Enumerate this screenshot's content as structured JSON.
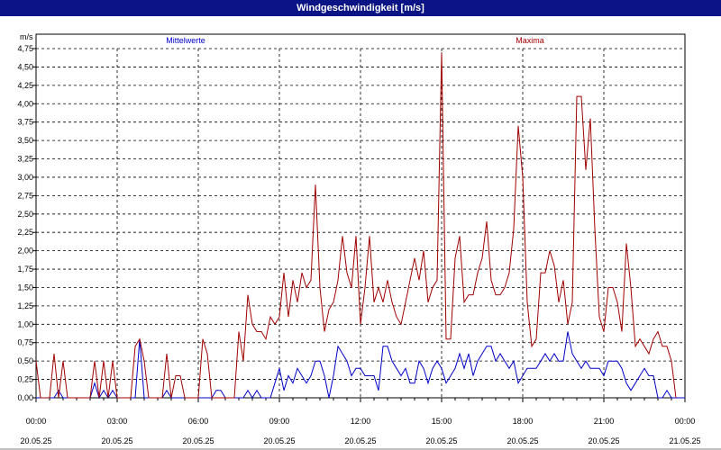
{
  "window": {
    "title": "Windgeschwindigkeit [m/s]"
  },
  "chart_data": {
    "type": "line",
    "title": "Windgeschwindigkeit [m/s]",
    "ylabel": "m/s",
    "ylim": [
      0,
      4.75
    ],
    "yticks": [
      "0,00",
      "0,25",
      "0,50",
      "0,75",
      "1,00",
      "1,25",
      "1,50",
      "1,75",
      "2,00",
      "2,25",
      "2,50",
      "2,75",
      "3,00",
      "3,25",
      "3,50",
      "3,75",
      "4,00",
      "4,25",
      "4,50",
      "4,75"
    ],
    "xticks": [
      {
        "time": "00:00",
        "date": "20.05.25"
      },
      {
        "time": "03:00",
        "date": "20.05.25"
      },
      {
        "time": "06:00",
        "date": "20.05.25"
      },
      {
        "time": "09:00",
        "date": "20.05.25"
      },
      {
        "time": "12:00",
        "date": "20.05.25"
      },
      {
        "time": "15:00",
        "date": "20.05.25"
      },
      {
        "time": "18:00",
        "date": "20.05.25"
      },
      {
        "time": "21:00",
        "date": "20.05.25"
      },
      {
        "time": "00:00",
        "date": "21.05.25"
      }
    ],
    "grid": true,
    "legend_position": "top",
    "series": [
      {
        "name": "Mittelwerte",
        "color": "#0000c8",
        "points": [
          [
            0,
            0
          ],
          [
            20,
            0
          ],
          [
            25,
            0.1
          ],
          [
            30,
            0
          ],
          [
            60,
            0
          ],
          [
            65,
            0.2
          ],
          [
            70,
            0
          ],
          [
            75,
            0.1
          ],
          [
            80,
            0
          ],
          [
            85,
            0.1
          ],
          [
            90,
            0
          ],
          [
            100,
            0
          ],
          [
            110,
            0
          ],
          [
            115,
            0.8
          ],
          [
            120,
            0
          ],
          [
            140,
            0
          ],
          [
            145,
            0.1
          ],
          [
            150,
            0
          ],
          [
            170,
            0
          ],
          [
            180,
            0
          ],
          [
            195,
            0
          ],
          [
            200,
            0.1
          ],
          [
            205,
            0.1
          ],
          [
            210,
            0
          ],
          [
            220,
            0
          ],
          [
            230,
            0
          ],
          [
            235,
            0.1
          ],
          [
            240,
            0
          ],
          [
            245,
            0.1
          ],
          [
            250,
            0
          ],
          [
            255,
            0
          ],
          [
            260,
            0
          ],
          [
            265,
            0.2
          ],
          [
            270,
            0.4
          ],
          [
            275,
            0.1
          ],
          [
            280,
            0.3
          ],
          [
            285,
            0.2
          ],
          [
            290,
            0.4
          ],
          [
            295,
            0.3
          ],
          [
            300,
            0.2
          ],
          [
            305,
            0.3
          ],
          [
            310,
            0.5
          ],
          [
            315,
            0.5
          ],
          [
            320,
            0.3
          ],
          [
            325,
            0
          ],
          [
            330,
            0.3
          ],
          [
            335,
            0.7
          ],
          [
            340,
            0.6
          ],
          [
            345,
            0.5
          ],
          [
            350,
            0.3
          ],
          [
            355,
            0.4
          ],
          [
            360,
            0.4
          ],
          [
            365,
            0.3
          ],
          [
            370,
            0.3
          ],
          [
            375,
            0.3
          ],
          [
            380,
            0.1
          ],
          [
            385,
            0.7
          ],
          [
            390,
            0.7
          ],
          [
            395,
            0.5
          ],
          [
            400,
            0.4
          ],
          [
            405,
            0.3
          ],
          [
            410,
            0.4
          ],
          [
            415,
            0.2
          ],
          [
            420,
            0.2
          ],
          [
            425,
            0.5
          ],
          [
            430,
            0.4
          ],
          [
            435,
            0.2
          ],
          [
            440,
            0.4
          ],
          [
            445,
            0.5
          ],
          [
            450,
            0.4
          ],
          [
            455,
            0.2
          ],
          [
            460,
            0.3
          ],
          [
            465,
            0.4
          ],
          [
            470,
            0.6
          ],
          [
            475,
            0.4
          ],
          [
            480,
            0.6
          ],
          [
            485,
            0.3
          ],
          [
            490,
            0.5
          ],
          [
            495,
            0.6
          ],
          [
            500,
            0.7
          ],
          [
            505,
            0.7
          ],
          [
            510,
            0.5
          ],
          [
            515,
            0.6
          ],
          [
            520,
            0.5
          ],
          [
            525,
            0.4
          ],
          [
            530,
            0.5
          ],
          [
            535,
            0.2
          ],
          [
            540,
            0.3
          ],
          [
            545,
            0.4
          ],
          [
            550,
            0.4
          ],
          [
            555,
            0.4
          ],
          [
            560,
            0.5
          ],
          [
            565,
            0.6
          ],
          [
            570,
            0.5
          ],
          [
            575,
            0.6
          ],
          [
            580,
            0.5
          ],
          [
            585,
            0.5
          ],
          [
            590,
            0.9
          ],
          [
            595,
            0.6
          ],
          [
            600,
            0.5
          ],
          [
            605,
            0.4
          ],
          [
            610,
            0.5
          ],
          [
            615,
            0.4
          ],
          [
            620,
            0.4
          ],
          [
            625,
            0.4
          ],
          [
            630,
            0.3
          ],
          [
            635,
            0.5
          ],
          [
            640,
            0.5
          ],
          [
            645,
            0.5
          ],
          [
            650,
            0.4
          ],
          [
            655,
            0.2
          ],
          [
            660,
            0.1
          ],
          [
            665,
            0.2
          ],
          [
            670,
            0.3
          ],
          [
            675,
            0.4
          ],
          [
            680,
            0.3
          ],
          [
            685,
            0.3
          ],
          [
            690,
            0
          ],
          [
            695,
            0
          ],
          [
            700,
            0.1
          ],
          [
            705,
            0
          ],
          [
            710,
            0
          ],
          [
            720,
            0
          ]
        ]
      },
      {
        "name": "Maxima",
        "color": "#a00000",
        "points": [
          [
            0,
            0.5
          ],
          [
            5,
            0
          ],
          [
            10,
            0
          ],
          [
            15,
            0
          ],
          [
            20,
            0.6
          ],
          [
            25,
            0
          ],
          [
            30,
            0.5
          ],
          [
            35,
            0
          ],
          [
            40,
            0
          ],
          [
            45,
            0
          ],
          [
            50,
            0
          ],
          [
            55,
            0
          ],
          [
            60,
            0
          ],
          [
            65,
            0.5
          ],
          [
            70,
            0
          ],
          [
            75,
            0.5
          ],
          [
            80,
            0
          ],
          [
            85,
            0.5
          ],
          [
            90,
            0
          ],
          [
            100,
            0
          ],
          [
            105,
            0
          ],
          [
            110,
            0.7
          ],
          [
            115,
            0.8
          ],
          [
            120,
            0.5
          ],
          [
            125,
            0
          ],
          [
            130,
            0
          ],
          [
            135,
            0
          ],
          [
            140,
            0
          ],
          [
            145,
            0.6
          ],
          [
            150,
            0
          ],
          [
            155,
            0.3
          ],
          [
            160,
            0.3
          ],
          [
            165,
            0
          ],
          [
            170,
            0
          ],
          [
            175,
            0
          ],
          [
            180,
            0
          ],
          [
            185,
            0.8
          ],
          [
            190,
            0.6
          ],
          [
            195,
            0
          ],
          [
            200,
            0
          ],
          [
            205,
            0
          ],
          [
            210,
            0
          ],
          [
            215,
            0
          ],
          [
            220,
            0
          ],
          [
            225,
            0.9
          ],
          [
            230,
            0.5
          ],
          [
            235,
            1.4
          ],
          [
            240,
            1.0
          ],
          [
            245,
            0.9
          ],
          [
            250,
            0.9
          ],
          [
            255,
            0.8
          ],
          [
            260,
            1.1
          ],
          [
            265,
            1.0
          ],
          [
            270,
            1.1
          ],
          [
            275,
            1.7
          ],
          [
            280,
            1.1
          ],
          [
            285,
            1.6
          ],
          [
            290,
            1.3
          ],
          [
            295,
            1.7
          ],
          [
            300,
            1.5
          ],
          [
            305,
            1.6
          ],
          [
            310,
            2.9
          ],
          [
            315,
            1.5
          ],
          [
            320,
            0.9
          ],
          [
            325,
            1.2
          ],
          [
            330,
            1.3
          ],
          [
            335,
            1.6
          ],
          [
            340,
            2.2
          ],
          [
            345,
            1.7
          ],
          [
            350,
            1.5
          ],
          [
            355,
            2.2
          ],
          [
            360,
            1.0
          ],
          [
            365,
            1.5
          ],
          [
            370,
            2.2
          ],
          [
            375,
            1.3
          ],
          [
            380,
            1.5
          ],
          [
            385,
            1.3
          ],
          [
            390,
            1.6
          ],
          [
            395,
            1.3
          ],
          [
            400,
            1.1
          ],
          [
            405,
            1.0
          ],
          [
            410,
            1.3
          ],
          [
            415,
            1.6
          ],
          [
            420,
            1.9
          ],
          [
            425,
            1.6
          ],
          [
            430,
            2.0
          ],
          [
            435,
            1.3
          ],
          [
            440,
            1.5
          ],
          [
            445,
            1.6
          ],
          [
            450,
            4.7
          ],
          [
            455,
            0.8
          ],
          [
            460,
            0.8
          ],
          [
            465,
            1.9
          ],
          [
            470,
            2.2
          ],
          [
            475,
            1.3
          ],
          [
            480,
            1.4
          ],
          [
            485,
            1.4
          ],
          [
            490,
            1.7
          ],
          [
            495,
            1.9
          ],
          [
            500,
            2.4
          ],
          [
            505,
            1.6
          ],
          [
            510,
            1.4
          ],
          [
            515,
            1.4
          ],
          [
            520,
            1.5
          ],
          [
            525,
            1.7
          ],
          [
            530,
            2.3
          ],
          [
            535,
            3.7
          ],
          [
            540,
            3.0
          ],
          [
            545,
            1.3
          ],
          [
            550,
            0.7
          ],
          [
            555,
            0.8
          ],
          [
            560,
            1.7
          ],
          [
            565,
            1.7
          ],
          [
            570,
            2.0
          ],
          [
            575,
            1.8
          ],
          [
            580,
            1.3
          ],
          [
            585,
            1.6
          ],
          [
            590,
            1.0
          ],
          [
            595,
            1.3
          ],
          [
            600,
            4.1
          ],
          [
            605,
            4.1
          ],
          [
            610,
            3.1
          ],
          [
            615,
            3.8
          ],
          [
            620,
            2.3
          ],
          [
            625,
            1.1
          ],
          [
            630,
            0.9
          ],
          [
            635,
            1.5
          ],
          [
            640,
            1.5
          ],
          [
            645,
            1.3
          ],
          [
            650,
            0.9
          ],
          [
            655,
            2.1
          ],
          [
            660,
            1.5
          ],
          [
            665,
            0.7
          ],
          [
            670,
            0.8
          ],
          [
            675,
            0.7
          ],
          [
            680,
            0.6
          ],
          [
            685,
            0.8
          ],
          [
            690,
            0.9
          ],
          [
            695,
            0.7
          ],
          [
            700,
            0.7
          ],
          [
            705,
            0.5
          ],
          [
            710,
            0
          ]
        ]
      }
    ]
  }
}
